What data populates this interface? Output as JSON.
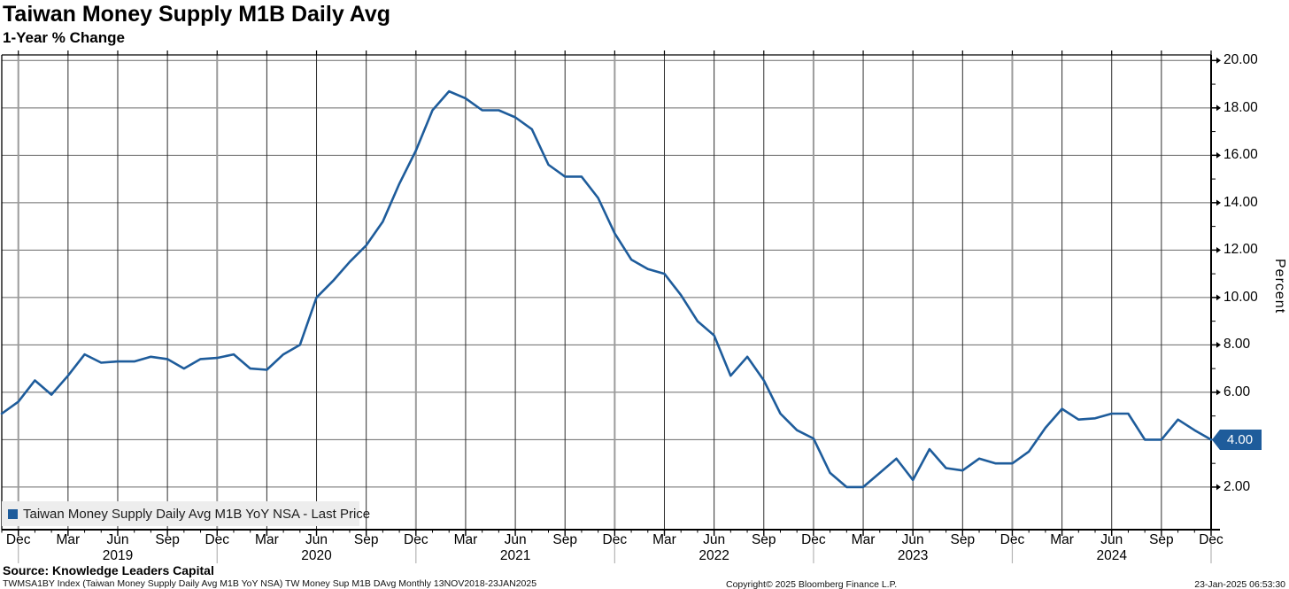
{
  "header": {
    "title": "Taiwan Money Supply M1B Daily Avg",
    "subtitle": "1-Year % Change"
  },
  "legend": {
    "marker_color": "#1e5c9b",
    "label": "Taiwan Money Supply Daily Avg M1B YoY NSA - Last Price"
  },
  "last_price_tag": "4.00",
  "y_axis": {
    "title": "Percent",
    "tick_labels": [
      "20.00",
      "18.00",
      "16.00",
      "14.00",
      "12.00",
      "10.00",
      "8.00",
      "6.00",
      "4.00",
      "2.00"
    ]
  },
  "x_axis": {
    "quarter_labels": [
      "Dec",
      "Mar",
      "Jun",
      "Sep",
      "Dec",
      "Mar",
      "Jun",
      "Sep",
      "Dec",
      "Mar",
      "Jun",
      "Sep",
      "Dec",
      "Mar",
      "Jun",
      "Sep",
      "Dec",
      "Mar",
      "Jun",
      "Sep",
      "Dec",
      "Mar",
      "Jun",
      "Sep",
      "Dec"
    ],
    "year_labels": [
      "2019",
      "2020",
      "2021",
      "2022",
      "2023",
      "2024"
    ]
  },
  "footer": {
    "source": "Source: Knowledge Leaders Capital",
    "ticker_line": "TWMSA1BY Index (Taiwan Money Supply Daily Avg M1B YoY NSA) TW Money Sup M1B DAvg  Monthly 13NOV2018-23JAN2025",
    "copyright": "Copyright© 2025 Bloomberg Finance L.P.",
    "datetime": "23-Jan-2025 06:53:30"
  },
  "chart_data": {
    "type": "line",
    "title": "Taiwan Money Supply M1B Daily Avg",
    "subtitle": "1-Year % Change",
    "series_name": "Taiwan Money Supply Daily Avg M1B YoY NSA - Last Price",
    "line_color": "#1e5c9b",
    "ylabel": "Percent",
    "ylim": [
      0.2,
      20.25
    ],
    "y_major_ticks": [
      2,
      4,
      6,
      8,
      10,
      12,
      14,
      16,
      18,
      20
    ],
    "grid": "both",
    "legend_position": "bottom-left",
    "last_price": 4.0,
    "x": [
      "2018-11",
      "2018-12",
      "2019-01",
      "2019-02",
      "2019-03",
      "2019-04",
      "2019-05",
      "2019-06",
      "2019-07",
      "2019-08",
      "2019-09",
      "2019-10",
      "2019-11",
      "2019-12",
      "2020-01",
      "2020-02",
      "2020-03",
      "2020-04",
      "2020-05",
      "2020-06",
      "2020-07",
      "2020-08",
      "2020-09",
      "2020-10",
      "2020-11",
      "2020-12",
      "2021-01",
      "2021-02",
      "2021-03",
      "2021-04",
      "2021-05",
      "2021-06",
      "2021-07",
      "2021-08",
      "2021-09",
      "2021-10",
      "2021-11",
      "2021-12",
      "2022-01",
      "2022-02",
      "2022-03",
      "2022-04",
      "2022-05",
      "2022-06",
      "2022-07",
      "2022-08",
      "2022-09",
      "2022-10",
      "2022-11",
      "2022-12",
      "2023-01",
      "2023-02",
      "2023-03",
      "2023-04",
      "2023-05",
      "2023-06",
      "2023-07",
      "2023-08",
      "2023-09",
      "2023-10",
      "2023-11",
      "2023-12",
      "2024-01",
      "2024-02",
      "2024-03",
      "2024-04",
      "2024-05",
      "2024-06",
      "2024-07",
      "2024-08",
      "2024-09",
      "2024-10",
      "2024-11",
      "2024-12"
    ],
    "values": [
      5.1,
      5.6,
      6.5,
      5.9,
      6.7,
      7.6,
      7.25,
      7.3,
      7.3,
      7.5,
      7.4,
      7.0,
      7.4,
      7.45,
      7.6,
      7.0,
      6.95,
      7.6,
      8.0,
      10.0,
      10.7,
      11.5,
      12.2,
      13.2,
      14.8,
      16.2,
      17.9,
      18.7,
      18.4,
      17.9,
      17.9,
      17.6,
      17.1,
      15.6,
      15.1,
      15.1,
      14.2,
      12.7,
      11.6,
      11.2,
      11.0,
      10.1,
      9.0,
      8.4,
      6.7,
      7.5,
      6.5,
      5.1,
      4.4,
      4.05,
      2.6,
      2.0,
      2.0,
      2.6,
      3.2,
      2.3,
      3.6,
      2.8,
      2.7,
      3.2,
      3.0,
      3.0,
      3.5,
      4.5,
      5.3,
      4.85,
      4.9,
      5.1,
      5.1,
      4.0,
      4.0,
      4.85,
      4.4,
      4.0
    ]
  }
}
